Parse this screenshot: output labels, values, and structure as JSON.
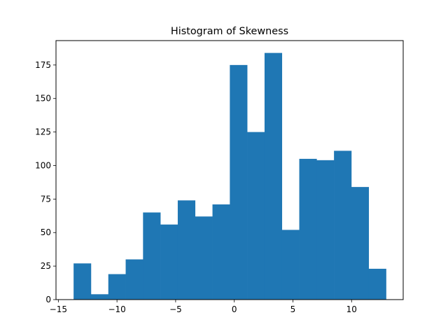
{
  "chart_data": {
    "type": "bar",
    "title": "Histogram of Skewness",
    "xlabel": "",
    "ylabel": "",
    "xlim": [
      -15.2,
      14.4
    ],
    "ylim": [
      0,
      193.2
    ],
    "bin_edges": [
      -13.7,
      -12.22,
      -10.74,
      -9.26,
      -7.78,
      -6.3,
      -4.82,
      -3.34,
      -1.86,
      -0.38,
      1.1,
      2.58,
      4.06,
      5.54,
      7.02,
      8.5,
      9.98,
      11.46,
      12.94
    ],
    "values": [
      27,
      4,
      19,
      30,
      65,
      56,
      74,
      62,
      71,
      175,
      125,
      184,
      52,
      105,
      104,
      111,
      84,
      23
    ],
    "x_ticks": [
      -15,
      -10,
      -5,
      0,
      5,
      10
    ],
    "x_tick_labels": [
      "−15",
      "−10",
      "−5",
      "0",
      "5",
      "10"
    ],
    "y_ticks": [
      0,
      25,
      50,
      75,
      100,
      125,
      150,
      175
    ],
    "y_tick_labels": [
      "0",
      "25",
      "50",
      "75",
      "100",
      "125",
      "150",
      "175"
    ],
    "bar_color": "#1f77b4",
    "grid": false,
    "legend": "none"
  }
}
